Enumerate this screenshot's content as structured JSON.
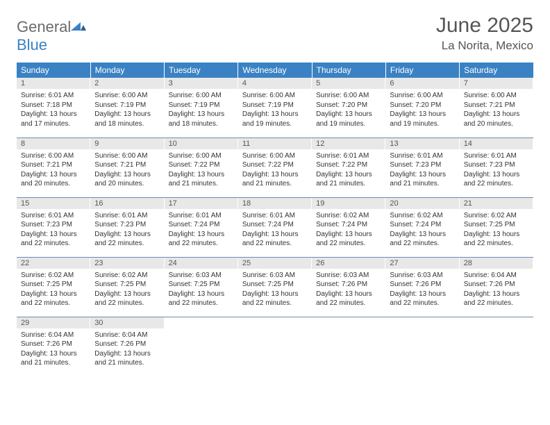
{
  "logo": {
    "general": "General",
    "blue": "Blue"
  },
  "title": {
    "month": "June 2025",
    "location": "La Norita, Mexico"
  },
  "colors": {
    "header_bg": "#3b82c4",
    "header_text": "#ffffff",
    "daynum_bg": "#e8e8e8",
    "border": "#6d8bb3",
    "text": "#333333",
    "muted": "#555555"
  },
  "dayHeaders": [
    "Sunday",
    "Monday",
    "Tuesday",
    "Wednesday",
    "Thursday",
    "Friday",
    "Saturday"
  ],
  "weeks": [
    [
      {
        "n": "1",
        "sr": "6:01 AM",
        "ss": "7:18 PM",
        "dl": "13 hours and 17 minutes."
      },
      {
        "n": "2",
        "sr": "6:00 AM",
        "ss": "7:19 PM",
        "dl": "13 hours and 18 minutes."
      },
      {
        "n": "3",
        "sr": "6:00 AM",
        "ss": "7:19 PM",
        "dl": "13 hours and 18 minutes."
      },
      {
        "n": "4",
        "sr": "6:00 AM",
        "ss": "7:19 PM",
        "dl": "13 hours and 19 minutes."
      },
      {
        "n": "5",
        "sr": "6:00 AM",
        "ss": "7:20 PM",
        "dl": "13 hours and 19 minutes."
      },
      {
        "n": "6",
        "sr": "6:00 AM",
        "ss": "7:20 PM",
        "dl": "13 hours and 19 minutes."
      },
      {
        "n": "7",
        "sr": "6:00 AM",
        "ss": "7:21 PM",
        "dl": "13 hours and 20 minutes."
      }
    ],
    [
      {
        "n": "8",
        "sr": "6:00 AM",
        "ss": "7:21 PM",
        "dl": "13 hours and 20 minutes."
      },
      {
        "n": "9",
        "sr": "6:00 AM",
        "ss": "7:21 PM",
        "dl": "13 hours and 20 minutes."
      },
      {
        "n": "10",
        "sr": "6:00 AM",
        "ss": "7:22 PM",
        "dl": "13 hours and 21 minutes."
      },
      {
        "n": "11",
        "sr": "6:00 AM",
        "ss": "7:22 PM",
        "dl": "13 hours and 21 minutes."
      },
      {
        "n": "12",
        "sr": "6:01 AM",
        "ss": "7:22 PM",
        "dl": "13 hours and 21 minutes."
      },
      {
        "n": "13",
        "sr": "6:01 AM",
        "ss": "7:23 PM",
        "dl": "13 hours and 21 minutes."
      },
      {
        "n": "14",
        "sr": "6:01 AM",
        "ss": "7:23 PM",
        "dl": "13 hours and 22 minutes."
      }
    ],
    [
      {
        "n": "15",
        "sr": "6:01 AM",
        "ss": "7:23 PM",
        "dl": "13 hours and 22 minutes."
      },
      {
        "n": "16",
        "sr": "6:01 AM",
        "ss": "7:23 PM",
        "dl": "13 hours and 22 minutes."
      },
      {
        "n": "17",
        "sr": "6:01 AM",
        "ss": "7:24 PM",
        "dl": "13 hours and 22 minutes."
      },
      {
        "n": "18",
        "sr": "6:01 AM",
        "ss": "7:24 PM",
        "dl": "13 hours and 22 minutes."
      },
      {
        "n": "19",
        "sr": "6:02 AM",
        "ss": "7:24 PM",
        "dl": "13 hours and 22 minutes."
      },
      {
        "n": "20",
        "sr": "6:02 AM",
        "ss": "7:24 PM",
        "dl": "13 hours and 22 minutes."
      },
      {
        "n": "21",
        "sr": "6:02 AM",
        "ss": "7:25 PM",
        "dl": "13 hours and 22 minutes."
      }
    ],
    [
      {
        "n": "22",
        "sr": "6:02 AM",
        "ss": "7:25 PM",
        "dl": "13 hours and 22 minutes."
      },
      {
        "n": "23",
        "sr": "6:02 AM",
        "ss": "7:25 PM",
        "dl": "13 hours and 22 minutes."
      },
      {
        "n": "24",
        "sr": "6:03 AM",
        "ss": "7:25 PM",
        "dl": "13 hours and 22 minutes."
      },
      {
        "n": "25",
        "sr": "6:03 AM",
        "ss": "7:25 PM",
        "dl": "13 hours and 22 minutes."
      },
      {
        "n": "26",
        "sr": "6:03 AM",
        "ss": "7:26 PM",
        "dl": "13 hours and 22 minutes."
      },
      {
        "n": "27",
        "sr": "6:03 AM",
        "ss": "7:26 PM",
        "dl": "13 hours and 22 minutes."
      },
      {
        "n": "28",
        "sr": "6:04 AM",
        "ss": "7:26 PM",
        "dl": "13 hours and 22 minutes."
      }
    ],
    [
      {
        "n": "29",
        "sr": "6:04 AM",
        "ss": "7:26 PM",
        "dl": "13 hours and 21 minutes."
      },
      {
        "n": "30",
        "sr": "6:04 AM",
        "ss": "7:26 PM",
        "dl": "13 hours and 21 minutes."
      },
      null,
      null,
      null,
      null,
      null
    ]
  ],
  "labels": {
    "sunrise": "Sunrise:",
    "sunset": "Sunset:",
    "daylight": "Daylight:"
  }
}
